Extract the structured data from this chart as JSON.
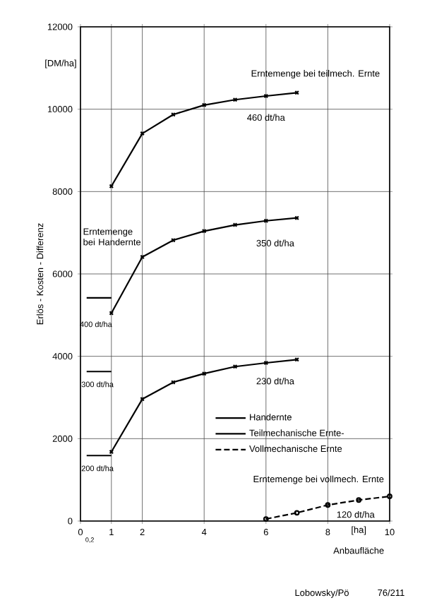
{
  "chart_data": {
    "type": "line",
    "xlabel": "Anbaufläche",
    "ylabel": "Erlös - Kosten - Differenz",
    "xlim": [
      0,
      10
    ],
    "ylim": [
      0,
      12000
    ],
    "xticks": [
      0,
      1,
      2,
      4,
      6,
      8,
      10
    ],
    "yticks": [
      0,
      2000,
      4000,
      6000,
      8000,
      10000,
      12000
    ],
    "grid": true,
    "legend": "right",
    "series": [
      {
        "name": "Handernte",
        "x": [
          0.2,
          1
        ],
        "values": [
          5420,
          5420
        ],
        "color": "#000000",
        "marker": "none",
        "line_style": "solid"
      },
      {
        "x": [
          0.2,
          1
        ],
        "values": [
          3630,
          3630
        ],
        "color": "#000000",
        "marker": "none",
        "line_style": "solid"
      },
      {
        "x": [
          0.2,
          1
        ],
        "values": [
          1590,
          1590
        ],
        "color": "#000000",
        "marker": "none",
        "line_style": "solid"
      },
      {
        "name": "Teilmechanische Ernte-",
        "x": [
          1,
          2,
          3,
          4,
          5,
          6,
          7
        ],
        "values": [
          8130,
          9410,
          9870,
          10100,
          10230,
          10320,
          10400
        ],
        "color": "#000000",
        "marker": "cross",
        "line_style": "solid"
      },
      {
        "x": [
          1,
          2,
          3,
          4,
          5,
          6,
          7
        ],
        "values": [
          5050,
          6410,
          6820,
          7040,
          7190,
          7290,
          7360
        ],
        "color": "#000000",
        "marker": "cross",
        "line_style": "solid"
      },
      {
        "x": [
          1,
          2,
          3,
          4,
          5,
          6,
          7
        ],
        "values": [
          1680,
          2960,
          3370,
          3580,
          3750,
          3840,
          3920
        ],
        "color": "#000000",
        "marker": "cross",
        "line_style": "solid"
      },
      {
        "name": "Vollmechanische Ernte",
        "x": [
          6,
          7,
          8,
          9,
          10
        ],
        "values": [
          50,
          200,
          390,
          510,
          600
        ],
        "color": "#000000",
        "marker": "circle",
        "line_style": "dashed"
      }
    ],
    "annotations": [
      "[DM/ha]",
      "Erntemenge bei teilmech. Ernte",
      "460 dt/ha",
      "350 dt/ha",
      "Erntemenge bei Handernte",
      "400 dt/ha",
      "300 dt/ha",
      "230 dt/ha",
      "200 dt/ha",
      "Erntemenge bei vollmech. Ernte",
      "120 dt/ha",
      "[ha]",
      "Lobowsky/Pö",
      "76/211",
      "0,2"
    ]
  }
}
